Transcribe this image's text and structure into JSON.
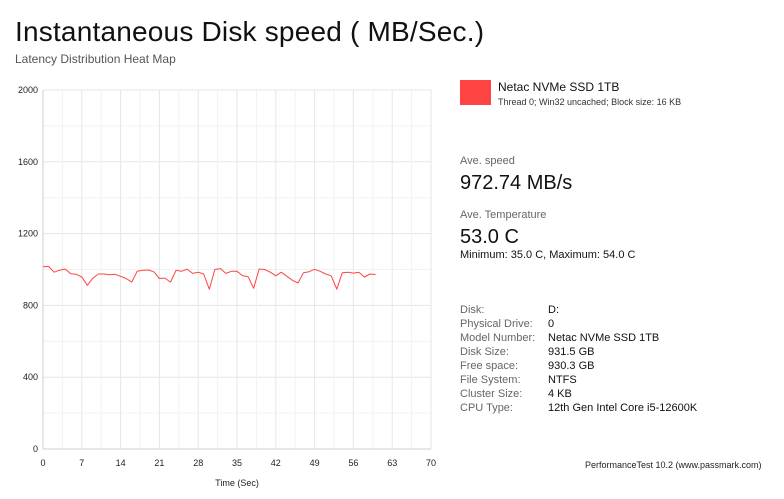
{
  "header": {
    "title": "Instantaneous Disk speed ( MB/Sec.)",
    "subtitle": "Latency Distribution Heat Map"
  },
  "legend": {
    "name": "Netac NVMe SSD 1TB",
    "detail": "Thread 0; Win32 uncached; Block size: 16 KB",
    "color": "#ff4444"
  },
  "stats": {
    "avg_speed_label": "Ave. speed",
    "avg_speed_value": "972.74 MB/s",
    "avg_temp_label": "Ave. Temperature",
    "avg_temp_value": "53.0 C",
    "minmax": "Minimum: 35.0 C, Maximum: 54.0 C"
  },
  "info": [
    {
      "key": "Disk:",
      "value": "D:"
    },
    {
      "key": "Physical Drive:",
      "value": "0"
    },
    {
      "key": "Model Number:",
      "value": "Netac NVMe SSD 1TB"
    },
    {
      "key": "Disk Size:",
      "value": "931.5 GB"
    },
    {
      "key": "Free space:",
      "value": "930.3 GB"
    },
    {
      "key": "File System:",
      "value": "NTFS"
    },
    {
      "key": "Cluster Size:",
      "value": "4 KB"
    },
    {
      "key": "CPU Type:",
      "value": "12th Gen Intel Core i5-12600K"
    }
  ],
  "footer": "PerformanceTest 10.2 (www.passmark.com)",
  "chart_data": {
    "type": "line",
    "title": "",
    "xlabel": "Time (Sec)",
    "ylabel": "",
    "xlim": [
      0,
      70
    ],
    "ylim": [
      0,
      2000
    ],
    "x_ticks": [
      "0",
      "7",
      "14",
      "21",
      "28",
      "35",
      "42",
      "49",
      "56",
      "63",
      "70"
    ],
    "y_ticks": [
      "0",
      "400",
      "800",
      "1200",
      "1600",
      "2000"
    ],
    "grid": true,
    "series": [
      {
        "name": "Netac NVMe SSD 1TB",
        "color": "#ff4444",
        "x": [
          0,
          1,
          2,
          3,
          4,
          5,
          6,
          7,
          8,
          9,
          10,
          11,
          12,
          13,
          14,
          15,
          16,
          17,
          18,
          19,
          20,
          21,
          22,
          23,
          24,
          25,
          26,
          27,
          28,
          29,
          30,
          31,
          32,
          33,
          34,
          35,
          36,
          37,
          38,
          39,
          40,
          41,
          42,
          43,
          44,
          45,
          46,
          47,
          48,
          49,
          50,
          51,
          52,
          53,
          54,
          55,
          56,
          57,
          58,
          59,
          60
        ],
        "y": [
          1015,
          1017,
          985,
          996,
          1003,
          976,
          973,
          958,
          912,
          952,
          975,
          975,
          971,
          973,
          962,
          950,
          930,
          990,
          996,
          997,
          987,
          950,
          952,
          930,
          995,
          990,
          1002,
          978,
          985,
          975,
          890,
          1000,
          1005,
          978,
          990,
          990,
          966,
          960,
          895,
          1003,
          1000,
          985,
          965,
          985,
          962,
          940,
          925,
          982,
          988,
          1001,
          990,
          975,
          965,
          890,
          982,
          985,
          980,
          985,
          958,
          975,
          972
        ]
      }
    ]
  }
}
